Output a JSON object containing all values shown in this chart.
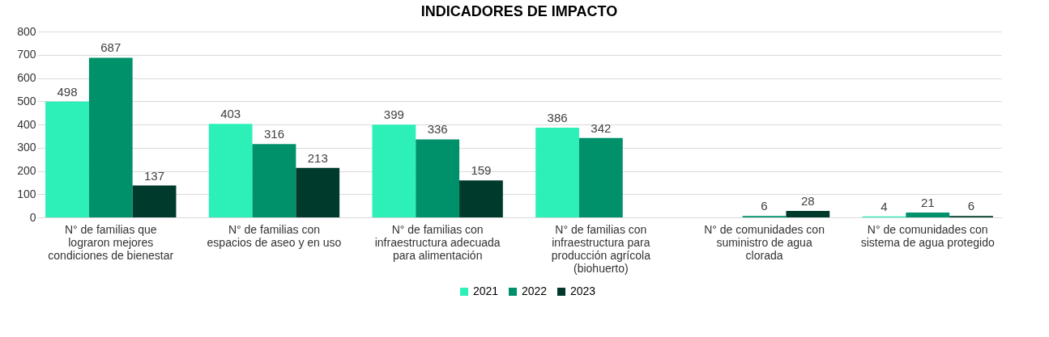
{
  "chart_data": {
    "type": "bar",
    "title": "INDICADORES DE IMPACTO",
    "categories": [
      "N° de familias que lograron mejores condiciones de bienestar",
      "N° de familias con espacios de aseo y en uso",
      "N° de familias con infraestructura adecuada para alimentación",
      "N° de familias con infraestructura para producción agrícola (biohuerto)",
      "N° de comunidades con suministro de agua clorada",
      "N° de comunidades con sistema de agua protegido"
    ],
    "series": [
      {
        "name": "2021",
        "color": "#2cf0b8",
        "values": [
          498,
          403,
          399,
          386,
          null,
          4
        ]
      },
      {
        "name": "2022",
        "color": "#00916a",
        "values": [
          687,
          316,
          336,
          342,
          6,
          21
        ]
      },
      {
        "name": "2023",
        "color": "#003a2c",
        "values": [
          137,
          213,
          159,
          null,
          28,
          6
        ]
      }
    ],
    "ylim": [
      0,
      800
    ],
    "yticks": [
      0,
      100,
      200,
      300,
      400,
      500,
      600,
      700,
      800
    ],
    "grid": "y",
    "legend": "bottom",
    "data_labels": true
  }
}
